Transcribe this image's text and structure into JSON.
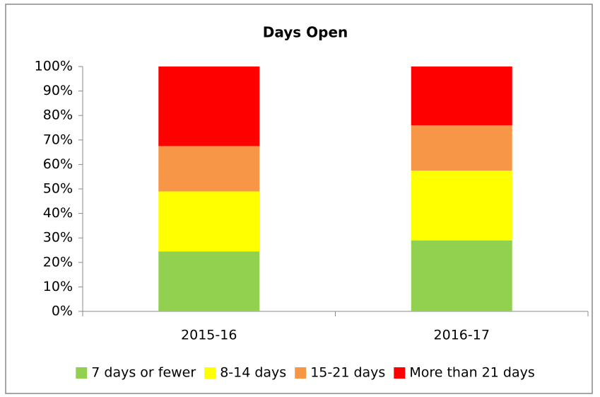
{
  "chart_data": {
    "type": "stacked_bar",
    "title": "Days Open",
    "categories": [
      "2015-16",
      "2016-17"
    ],
    "series": [
      {
        "name": "7 days or fewer",
        "color": "#92d050",
        "values": [
          24.5,
          29
        ]
      },
      {
        "name": "8-14 days",
        "color": "#ffff00",
        "values": [
          24.5,
          28.5
        ]
      },
      {
        "name": "15-21 days",
        "color": "#f79646",
        "values": [
          18.5,
          18.5
        ]
      },
      {
        "name": "More than 21 days",
        "color": "#ff0000",
        "values": [
          32.5,
          24
        ]
      }
    ],
    "ylim": [
      0,
      100
    ],
    "yticks": [
      {
        "value": 0,
        "label": "0%"
      },
      {
        "value": 10,
        "label": "10%"
      },
      {
        "value": 20,
        "label": "20%"
      },
      {
        "value": 30,
        "label": "30%"
      },
      {
        "value": 40,
        "label": "40%"
      },
      {
        "value": 50,
        "label": "50%"
      },
      {
        "value": 60,
        "label": "60%"
      },
      {
        "value": 70,
        "label": "70%"
      },
      {
        "value": 80,
        "label": "80%"
      },
      {
        "value": 90,
        "label": "90%"
      },
      {
        "value": 100,
        "label": "100%"
      }
    ],
    "grid": false,
    "legend": "bottom"
  }
}
